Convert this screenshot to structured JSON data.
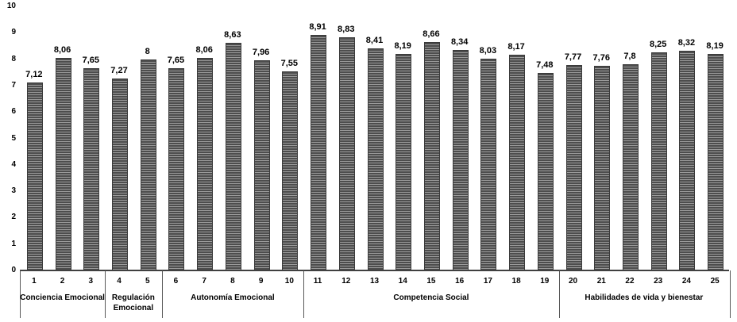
{
  "chart_data": {
    "type": "bar",
    "title": "",
    "xlabel": "",
    "ylabel": "",
    "ylim": [
      0,
      10
    ],
    "yticks": [
      "0",
      "1",
      "2",
      "3",
      "4",
      "5",
      "6",
      "7",
      "8",
      "9",
      "10"
    ],
    "grid": false,
    "legend": false,
    "categories": [
      "1",
      "2",
      "3",
      "4",
      "5",
      "6",
      "7",
      "8",
      "9",
      "10",
      "11",
      "12",
      "13",
      "14",
      "15",
      "16",
      "17",
      "18",
      "19",
      "20",
      "21",
      "22",
      "23",
      "24",
      "25"
    ],
    "values": [
      7.12,
      8.06,
      7.65,
      7.27,
      8,
      7.65,
      8.06,
      8.63,
      7.96,
      7.55,
      8.91,
      8.83,
      8.41,
      8.19,
      8.66,
      8.34,
      8.03,
      8.17,
      7.48,
      7.77,
      7.76,
      7.8,
      8.25,
      8.32,
      8.19
    ],
    "value_labels": [
      "7,12",
      "8,06",
      "7,65",
      "7,27",
      "8",
      "7,65",
      "8,06",
      "8,63",
      "7,96",
      "7,55",
      "8,91",
      "8,83",
      "8,41",
      "8,19",
      "8,66",
      "8,34",
      "8,03",
      "8,17",
      "7,48",
      "7,77",
      "7,76",
      "7,8",
      "8,25",
      "8,32",
      "8,19"
    ],
    "groups": [
      {
        "label": "Conciencia Emocional",
        "from": 1,
        "to": 3
      },
      {
        "label": "Regulación Emocional",
        "from": 4,
        "to": 5
      },
      {
        "label": "Autonomía Emocional",
        "from": 6,
        "to": 10
      },
      {
        "label": "Competencia Social",
        "from": 11,
        "to": 19
      },
      {
        "label": "Habilidades de vida y bienestar",
        "from": 20,
        "to": 25
      }
    ],
    "colors": {
      "bar_fill_dark": "#4d4d4d",
      "bar_stripe_light": "#9a9a9a",
      "bar_edge": "#3a3a3a",
      "axis_line": "#404040",
      "group_border": "#595959",
      "text": "#000000",
      "background": "#ffffff"
    },
    "bar_pattern": "horizontal-stripes"
  }
}
